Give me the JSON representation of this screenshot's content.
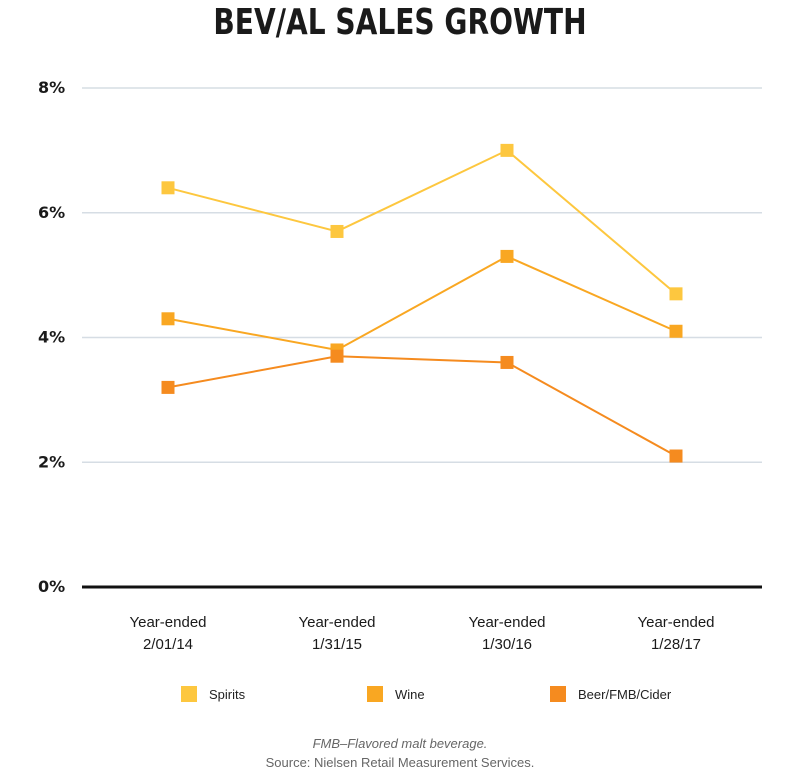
{
  "title": "BEV/AL SALES GROWTH",
  "chart_data": {
    "type": "line",
    "title": "BEV/AL SALES GROWTH",
    "categories": [
      [
        "Year-ended",
        "2/01/14"
      ],
      [
        "Year-ended",
        "1/31/15"
      ],
      [
        "Year-ended",
        "1/30/16"
      ],
      [
        "Year-ended",
        "1/28/17"
      ]
    ],
    "series": [
      {
        "name": "Spirits",
        "color": "#fdc73f",
        "values": [
          6.4,
          5.7,
          7.0,
          4.7
        ]
      },
      {
        "name": "Wine",
        "color": "#f9a722",
        "values": [
          4.3,
          3.8,
          5.3,
          4.1
        ]
      },
      {
        "name": "Beer/FMB/Cider",
        "color": "#f58b1f",
        "values": [
          3.2,
          3.7,
          3.6,
          2.1
        ]
      }
    ],
    "yticks": [
      "0%",
      "2%",
      "4%",
      "6%",
      "8%"
    ],
    "ylim": [
      0,
      8
    ],
    "xlabel": "",
    "ylabel": "",
    "grid": true
  },
  "legend": [
    {
      "label": "Spirits",
      "color": "#fdc73f"
    },
    {
      "label": "Wine",
      "color": "#f9a722"
    },
    {
      "label": "Beer/FMB/Cider",
      "color": "#f58b1f"
    }
  ],
  "footnotes": {
    "definition": "FMB–Flavored malt beverage.",
    "source": "Source: Nielsen Retail Measurement Services."
  }
}
